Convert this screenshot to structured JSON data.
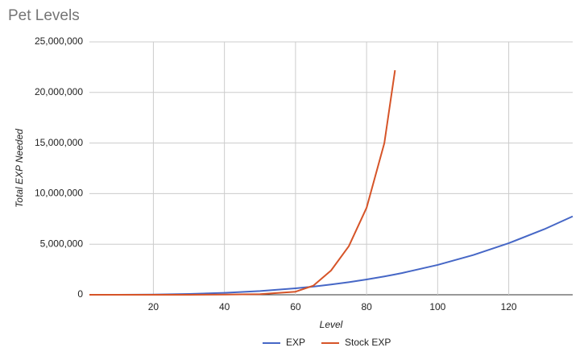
{
  "chart_data": {
    "type": "line",
    "title": "Pet Levels",
    "x_label": "Level",
    "y_label": "Total EXP Needed",
    "x": [
      2,
      10,
      20,
      30,
      40,
      50,
      60,
      65,
      70,
      75,
      80,
      85,
      88,
      90,
      100,
      110,
      120,
      130,
      138
    ],
    "series": [
      {
        "name": "EXP",
        "color": "#4667c6",
        "values": [
          24,
          2950,
          23600,
          79650,
          188800,
          368750,
          637200,
          810000,
          1011850,
          1244500,
          1510400,
          1811700,
          2010000,
          2150550,
          2950000,
          3926450,
          5097600,
          6481150,
          7752000
        ]
      },
      {
        "name": "Stock EXP",
        "color": "#d65428",
        "values": [
          0,
          100,
          1000,
          4000,
          15000,
          60000,
          300000,
          900000,
          2400000,
          4800000,
          8600000,
          15000000,
          22200000,
          null,
          null,
          null,
          null,
          null,
          null
        ]
      }
    ],
    "xlim": [
      2,
      138
    ],
    "xticks": [
      20,
      40,
      60,
      80,
      100,
      120
    ],
    "ylim": [
      0,
      25000000
    ],
    "yticks": [
      0,
      {
        "value": 5000000,
        "label": "5,000,000"
      },
      {
        "value": 10000000,
        "label": "10,000,000"
      },
      {
        "value": 15000000,
        "label": "15,000,000"
      },
      {
        "value": 20000000,
        "label": "20,000,000"
      },
      {
        "value": 25000000,
        "label": "25,000,000"
      }
    ],
    "grid": true,
    "legend": "bottom"
  }
}
